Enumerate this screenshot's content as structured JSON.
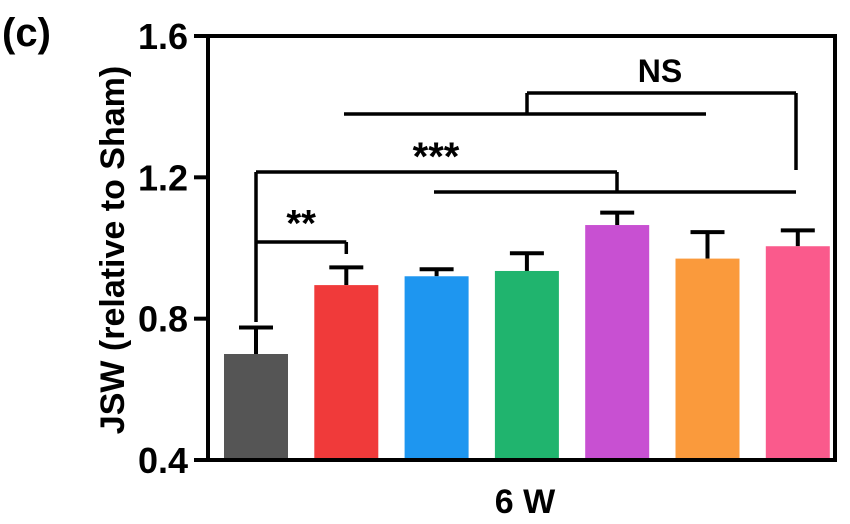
{
  "panel_label": "(c)",
  "chart_data": {
    "type": "bar",
    "title": "",
    "xlabel": "",
    "ylabel": "JSW (relative to Sham)",
    "x_category_label": "6 W",
    "ylim": [
      0.4,
      1.6
    ],
    "yticks": [
      "0.4",
      "0.8",
      "1.2",
      "1.6"
    ],
    "grid": false,
    "legend": "none",
    "bars": [
      {
        "value": 0.7,
        "error": 0.075,
        "color": "#555555"
      },
      {
        "value": 0.895,
        "error": 0.05,
        "color": "#f03a3a"
      },
      {
        "value": 0.92,
        "error": 0.02,
        "color": "#1e96f0"
      },
      {
        "value": 0.935,
        "error": 0.05,
        "color": "#20b46e"
      },
      {
        "value": 1.065,
        "error": 0.035,
        "color": "#c850d2"
      },
      {
        "value": 0.97,
        "error": 0.075,
        "color": "#fa9a3c"
      },
      {
        "value": 1.005,
        "error": 0.045,
        "color": "#fa5a8c"
      }
    ],
    "annotations": [
      {
        "text": "**",
        "from_bar": 0,
        "to_bars": [
          1
        ]
      },
      {
        "text": "***",
        "from_bar": 0,
        "to_bars": [
          2,
          3,
          4,
          5,
          6
        ]
      },
      {
        "text": "NS",
        "from_bar": 6,
        "to_bars": [
          1,
          2,
          3,
          4,
          5
        ]
      }
    ]
  }
}
